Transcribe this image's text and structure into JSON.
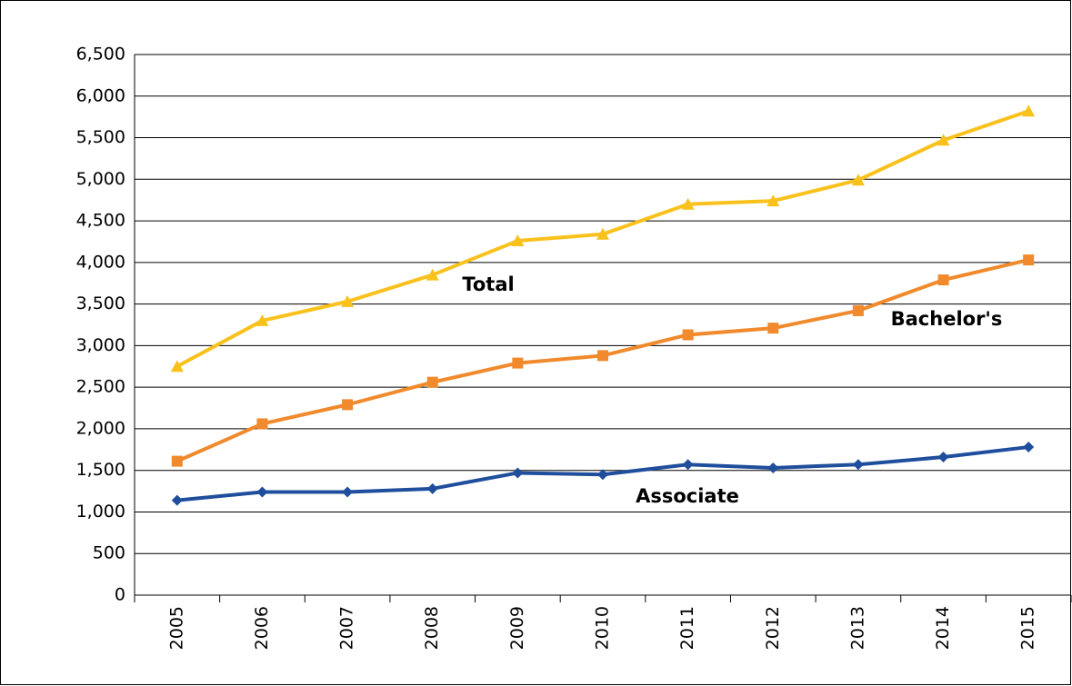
{
  "chart_data": {
    "type": "line",
    "categories": [
      "2005",
      "2006",
      "2007",
      "2008",
      "2009",
      "2010",
      "2011",
      "2012",
      "2013",
      "2014",
      "2015"
    ],
    "series": [
      {
        "name": "Total",
        "color": "#f9c11c",
        "marker": "triangle",
        "values": [
          2750,
          3300,
          3530,
          3850,
          4260,
          4340,
          4700,
          4740,
          4990,
          5470,
          5820
        ]
      },
      {
        "name": "Bachelor's",
        "color": "#f08a2c",
        "marker": "square",
        "values": [
          1610,
          2060,
          2290,
          2560,
          2790,
          2880,
          3130,
          3210,
          3420,
          3790,
          4030
        ]
      },
      {
        "name": "Associate",
        "color": "#1f4e9c",
        "marker": "diamond",
        "values": [
          1140,
          1240,
          1240,
          1280,
          1470,
          1450,
          1570,
          1530,
          1570,
          1660,
          1780
        ]
      }
    ],
    "ylim": [
      0,
      6500
    ],
    "yticks": [
      0,
      500,
      {
        "value": 1000,
        "label": "1,000"
      },
      {
        "value": 1500,
        "label": "1,500"
      },
      {
        "value": 2000,
        "label": "2,000"
      },
      {
        "value": 2500,
        "label": "2,500"
      },
      {
        "value": 3000,
        "label": "3,000"
      },
      {
        "value": 3500,
        "label": "3,500"
      },
      {
        "value": 4000,
        "label": "4,000"
      },
      {
        "value": 4500,
        "label": "4,500"
      },
      {
        "value": 5000,
        "label": "5,000"
      },
      {
        "value": 5500,
        "label": "5,500"
      },
      {
        "value": 6000,
        "label": "6,000"
      },
      {
        "value": 6500,
        "label": "6,500"
      }
    ],
    "grid": true
  }
}
